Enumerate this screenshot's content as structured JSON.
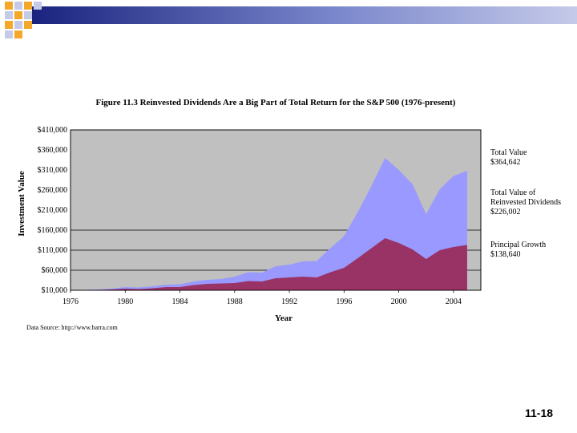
{
  "slide": {
    "number": "11-18"
  },
  "theme": {
    "deco_dark": "#1a237e",
    "deco_mid": "#7986cb",
    "deco_light": "#c5cae9",
    "deco_orange": "#f4a82a"
  },
  "chart_data": {
    "type": "area",
    "title": "Figure 11.3 Reinvested Dividends Are a Big Part of Total Return for the S&P 500 (1976-present)",
    "xlabel": "Year",
    "ylabel": "Investment Value",
    "xlim": [
      1976,
      2006
    ],
    "ylim": [
      10000,
      410000
    ],
    "x_ticks": [
      "1976",
      "1980",
      "1984",
      "1988",
      "1992",
      "1996",
      "2000",
      "2004"
    ],
    "y_ticks": [
      "$410,000",
      "$360,000",
      "$310,000",
      "$260,000",
      "$210,000",
      "$160,000",
      "$110,000",
      "$60,000",
      "$10,000"
    ],
    "gridlines": [
      160000,
      110000,
      60000
    ],
    "grid": true,
    "x": [
      1976,
      1977,
      1978,
      1979,
      1980,
      1981,
      1982,
      1983,
      1984,
      1985,
      1986,
      1987,
      1988,
      1989,
      1990,
      1991,
      1992,
      1993,
      1994,
      1995,
      1996,
      1997,
      1998,
      1999,
      2000,
      2001,
      2002,
      2003,
      2004,
      2005
    ],
    "series": [
      {
        "name": "Total Value",
        "color": "#9999ff",
        "values": [
          10000,
          11000,
          12000,
          14000,
          18000,
          17000,
          20000,
          24000,
          25000,
          32000,
          36000,
          38000,
          44000,
          55000,
          54000,
          70000,
          74000,
          82000,
          83000,
          115000,
          145000,
          205000,
          270000,
          340000,
          310000,
          275000,
          200000,
          262000,
          295000,
          308000
        ]
      },
      {
        "name": "Principal Growth",
        "color": "#993366",
        "values": [
          10000,
          10500,
          11000,
          12000,
          14000,
          13000,
          15000,
          18000,
          18000,
          23000,
          26000,
          27000,
          28000,
          33000,
          32000,
          40000,
          42000,
          44000,
          42000,
          55000,
          66000,
          90000,
          115000,
          140000,
          128000,
          112000,
          88000,
          110000,
          118000,
          123000
        ]
      }
    ],
    "annotations": [
      {
        "lines": [
          "Total Value",
          "$364,642"
        ]
      },
      {
        "lines": [
          "Total Value of",
          "Reinvested Dividends",
          "$226,002"
        ]
      },
      {
        "lines": [
          "Principal Growth",
          "$138,640"
        ]
      }
    ],
    "source": "Data Source: http://www.barra.com"
  }
}
